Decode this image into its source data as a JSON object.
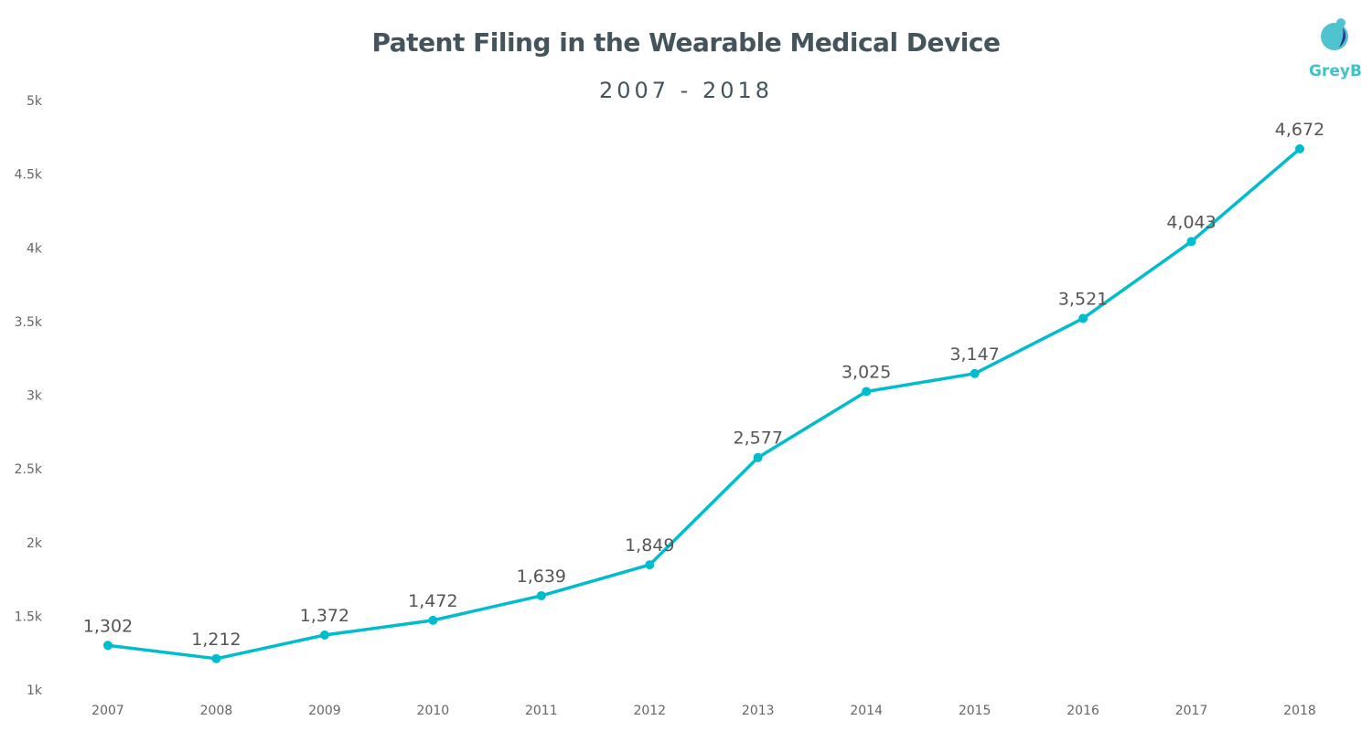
{
  "chart_data": {
    "type": "line",
    "title": "Patent Filing in the Wearable Medical Device",
    "subtitle": "2007 - 2018",
    "categories": [
      "2007",
      "2008",
      "2009",
      "2010",
      "2011",
      "2012",
      "2013",
      "2014",
      "2015",
      "2016",
      "2017",
      "2018"
    ],
    "values": [
      1302,
      1212,
      1372,
      1472,
      1639,
      1849,
      2577,
      3025,
      3147,
      3521,
      4043,
      4672
    ],
    "data_labels": [
      "1,302",
      "1,212",
      "1,372",
      "1,472",
      "1,639",
      "1,849",
      "2,577",
      "3,025",
      "3,147",
      "3,521",
      "4,043",
      "4,672"
    ],
    "ylim": [
      1000,
      5000
    ],
    "yticks": [
      1000,
      1500,
      2000,
      2500,
      3000,
      3500,
      4000,
      4500,
      5000
    ],
    "ytick_labels": [
      "1k",
      "1.5k",
      "2k",
      "2.5k",
      "3k",
      "3.5k",
      "4k",
      "4.5k",
      "5k"
    ],
    "xlabel": "",
    "ylabel": "",
    "grid": false,
    "line_color": "#00bccc"
  },
  "logo": {
    "text": "GreyB",
    "color": "#3fc1cc",
    "accent": "#2a3a8f"
  }
}
